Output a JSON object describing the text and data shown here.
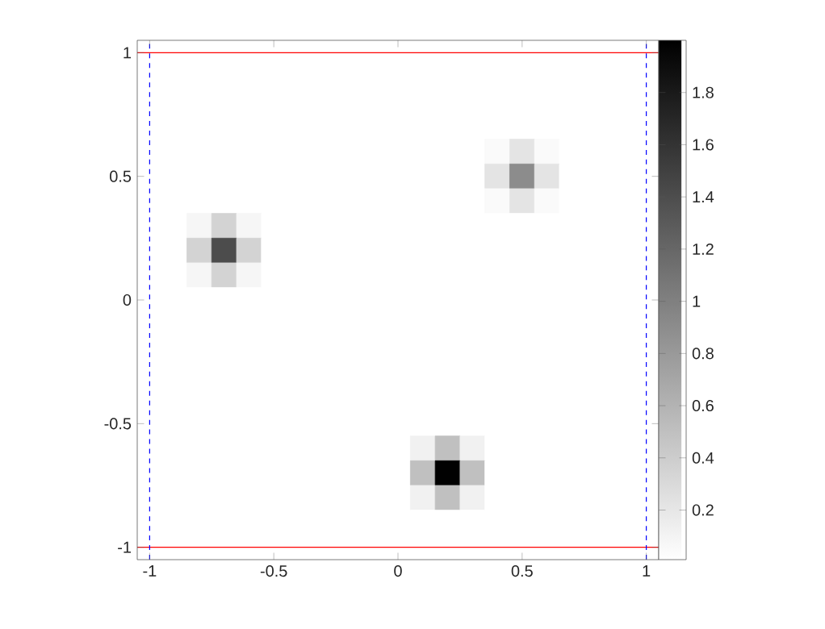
{
  "chart_data": {
    "type": "heatmap",
    "categories": [
      "-1",
      null,
      null,
      null,
      null,
      "-0.5",
      null,
      null,
      null,
      null,
      "0",
      null,
      null,
      null,
      null,
      "0.5",
      null,
      null,
      null,
      null,
      "1"
    ],
    "y_categories": [
      "1",
      null,
      null,
      null,
      null,
      "0.5",
      null,
      null,
      null,
      null,
      "0",
      null,
      null,
      null,
      null,
      "-0.5",
      null,
      null,
      null,
      null,
      "-1"
    ],
    "clim": [
      0.01,
      2
    ],
    "cticks": [
      0.2,
      0.4,
      0.6,
      0.8,
      1,
      1.2,
      1.4,
      1.6,
      1.8
    ],
    "ref_lines": [
      {
        "axis": "y",
        "value": "1",
        "color": "#ff0000",
        "line_style": "solid"
      },
      {
        "axis": "y",
        "value": "-1",
        "color": "#ff0000",
        "line_style": "solid"
      },
      {
        "axis": "x",
        "value": "-1",
        "color": "#0000ff",
        "line_style": "dashed"
      },
      {
        "axis": "x",
        "value": "1",
        "color": "#0000ff",
        "line_style": "dashed"
      }
    ],
    "cells": [
      [
        0.01,
        0.01,
        0.01,
        0.01,
        0.01,
        0.01,
        0.01,
        0.01,
        0.01,
        0.01,
        0.01,
        0.01,
        0.01,
        0.01,
        0.01,
        0.01,
        0.01,
        0.01,
        0.01,
        0.01,
        0.01
      ],
      [
        0.01,
        0.01,
        0.01,
        0.01,
        0.01,
        0.01,
        0.01,
        0.01,
        0.01,
        0.01,
        0.01,
        0.01,
        0.01,
        0.01,
        0.01,
        0.01,
        0.01,
        0.01,
        0.01,
        0.01,
        0.01
      ],
      [
        0.01,
        0.01,
        0.01,
        0.01,
        0.01,
        0.01,
        0.01,
        0.01,
        0.01,
        0.01,
        0.01,
        0.01,
        0.01,
        0.01,
        0.01,
        0.01,
        0.01,
        0.01,
        0.01,
        0.01,
        0.01
      ],
      [
        0.01,
        0.01,
        0.01,
        0.01,
        0.01,
        0.01,
        0.01,
        0.01,
        0.01,
        0.01,
        0.01,
        0.01,
        0.01,
        0.01,
        0.01,
        0.01,
        0.01,
        0.01,
        0.01,
        0.01,
        0.01
      ],
      [
        0.01,
        0.01,
        0.01,
        0.01,
        0.01,
        0.01,
        0.01,
        0.01,
        0.01,
        0.01,
        0.01,
        0.01,
        0.01,
        0.01,
        0.05,
        0.22,
        0.05,
        0.01,
        0.01,
        0.01,
        0.01
      ],
      [
        0.01,
        0.01,
        0.01,
        0.01,
        0.01,
        0.01,
        0.01,
        0.01,
        0.01,
        0.01,
        0.01,
        0.01,
        0.01,
        0.01,
        0.22,
        0.9,
        0.22,
        0.01,
        0.01,
        0.01,
        0.01
      ],
      [
        0.01,
        0.01,
        0.01,
        0.01,
        0.01,
        0.01,
        0.01,
        0.01,
        0.01,
        0.01,
        0.01,
        0.01,
        0.01,
        0.01,
        0.05,
        0.22,
        0.05,
        0.01,
        0.01,
        0.01,
        0.01
      ],
      [
        0.01,
        0.01,
        0.08,
        0.35,
        0.08,
        0.01,
        0.01,
        0.01,
        0.01,
        0.01,
        0.01,
        0.01,
        0.01,
        0.01,
        0.01,
        0.01,
        0.01,
        0.01,
        0.01,
        0.01,
        0.01
      ],
      [
        0.01,
        0.01,
        0.35,
        1.4,
        0.35,
        0.01,
        0.01,
        0.01,
        0.01,
        0.01,
        0.01,
        0.01,
        0.01,
        0.01,
        0.01,
        0.01,
        0.01,
        0.01,
        0.01,
        0.01,
        0.01
      ],
      [
        0.01,
        0.01,
        0.08,
        0.35,
        0.08,
        0.01,
        0.01,
        0.01,
        0.01,
        0.01,
        0.01,
        0.01,
        0.01,
        0.01,
        0.01,
        0.01,
        0.01,
        0.01,
        0.01,
        0.01,
        0.01
      ],
      [
        0.01,
        0.01,
        0.01,
        0.01,
        0.01,
        0.01,
        0.01,
        0.01,
        0.01,
        0.01,
        0.01,
        0.01,
        0.01,
        0.01,
        0.01,
        0.01,
        0.01,
        0.01,
        0.01,
        0.01,
        0.01
      ],
      [
        0.01,
        0.01,
        0.01,
        0.01,
        0.01,
        0.01,
        0.01,
        0.01,
        0.01,
        0.01,
        0.01,
        0.01,
        0.01,
        0.01,
        0.01,
        0.01,
        0.01,
        0.01,
        0.01,
        0.01,
        0.01
      ],
      [
        0.01,
        0.01,
        0.01,
        0.01,
        0.01,
        0.01,
        0.01,
        0.01,
        0.01,
        0.01,
        0.01,
        0.01,
        0.01,
        0.01,
        0.01,
        0.01,
        0.01,
        0.01,
        0.01,
        0.01,
        0.01
      ],
      [
        0.01,
        0.01,
        0.01,
        0.01,
        0.01,
        0.01,
        0.01,
        0.01,
        0.01,
        0.01,
        0.01,
        0.01,
        0.01,
        0.01,
        0.01,
        0.01,
        0.01,
        0.01,
        0.01,
        0.01,
        0.01
      ],
      [
        0.01,
        0.01,
        0.01,
        0.01,
        0.01,
        0.01,
        0.01,
        0.01,
        0.01,
        0.01,
        0.01,
        0.01,
        0.01,
        0.01,
        0.01,
        0.01,
        0.01,
        0.01,
        0.01,
        0.01,
        0.01
      ],
      [
        0.01,
        0.01,
        0.01,
        0.01,
        0.01,
        0.01,
        0.01,
        0.01,
        0.01,
        0.01,
        0.01,
        0.01,
        0.01,
        0.01,
        0.01,
        0.01,
        0.01,
        0.01,
        0.01,
        0.01,
        0.01
      ],
      [
        0.01,
        0.01,
        0.01,
        0.01,
        0.01,
        0.01,
        0.01,
        0.01,
        0.01,
        0.01,
        0.01,
        0.12,
        0.5,
        0.12,
        0.01,
        0.01,
        0.01,
        0.01,
        0.01,
        0.01,
        0.01
      ],
      [
        0.01,
        0.01,
        0.01,
        0.01,
        0.01,
        0.01,
        0.01,
        0.01,
        0.01,
        0.01,
        0.01,
        0.5,
        1.98,
        0.5,
        0.01,
        0.01,
        0.01,
        0.01,
        0.01,
        0.01,
        0.01
      ],
      [
        0.01,
        0.01,
        0.01,
        0.01,
        0.01,
        0.01,
        0.01,
        0.01,
        0.01,
        0.01,
        0.01,
        0.12,
        0.5,
        0.12,
        0.01,
        0.01,
        0.01,
        0.01,
        0.01,
        0.01,
        0.01
      ],
      [
        0.01,
        0.01,
        0.01,
        0.01,
        0.01,
        0.01,
        0.01,
        0.01,
        0.01,
        0.01,
        0.01,
        0.01,
        0.01,
        0.01,
        0.01,
        0.01,
        0.01,
        0.01,
        0.01,
        0.01,
        0.01
      ],
      [
        0.01,
        0.01,
        0.01,
        0.01,
        0.01,
        0.01,
        0.01,
        0.01,
        0.01,
        0.01,
        0.01,
        0.01,
        0.01,
        0.01,
        0.01,
        0.01,
        0.01,
        0.01,
        0.01,
        0.01,
        0.01
      ]
    ]
  }
}
